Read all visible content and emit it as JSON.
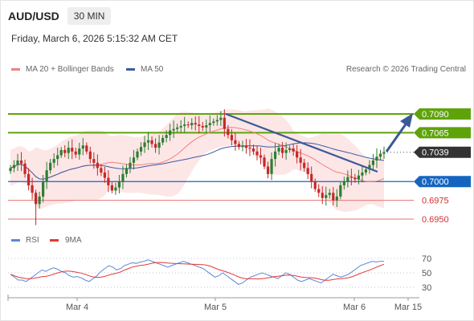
{
  "header": {
    "symbol": "AUD/USD",
    "timeframe": "30 MIN",
    "datetime": "Friday, March 6, 2026 5:15:32 AM CET"
  },
  "legend": {
    "ma20": "MA 20 + Bollinger Bands",
    "ma50": "MA 50",
    "copyright": "Research © 2026 Trading Central",
    "rsi": "RSI",
    "rsi_ma": "9MA"
  },
  "colors": {
    "up": "#2e7d32",
    "down": "#c62828",
    "ma20": "#f08080",
    "band": "#fde0e0",
    "ma50": "#3b5ba5",
    "resistance": "#5fa30a",
    "support": "#1565c0",
    "minor_support": "#e57373",
    "trend": "#3b5998",
    "rsi": "#5b8ad6",
    "rsi_ma": "#e53935"
  },
  "chart_data": {
    "type": "candlestick",
    "x_ticks": [
      "Mar 4",
      "Mar 5",
      "Mar 6",
      "Mar 15"
    ],
    "y_range": [
      0.6935,
      0.7105
    ],
    "levels": [
      {
        "value": 0.709,
        "label": "0.7090",
        "kind": "resistance"
      },
      {
        "value": 0.7065,
        "label": "0.7065",
        "kind": "resistance"
      },
      {
        "value": 0.7039,
        "label": "0.7039",
        "kind": "last"
      },
      {
        "value": 0.7,
        "label": "0.7000",
        "kind": "support"
      },
      {
        "value": 0.6975,
        "label": "0.6975",
        "kind": "minor_support"
      },
      {
        "value": 0.695,
        "label": "0.6950",
        "kind": "minor_support"
      }
    ],
    "closes": [
      0.7018,
      0.7022,
      0.7028,
      0.7024,
      0.701,
      0.6995,
      0.6985,
      0.697,
      0.698,
      0.7,
      0.7015,
      0.7025,
      0.703,
      0.7035,
      0.7042,
      0.7038,
      0.7045,
      0.704,
      0.7036,
      0.7044,
      0.7048,
      0.704,
      0.703,
      0.7025,
      0.7018,
      0.7012,
      0.7005,
      0.6995,
      0.6988,
      0.6992,
      0.7,
      0.701,
      0.7018,
      0.7025,
      0.7032,
      0.704,
      0.7046,
      0.7052,
      0.7055,
      0.705,
      0.7045,
      0.7052,
      0.7058,
      0.7062,
      0.7068,
      0.707,
      0.7072,
      0.7074,
      0.7076,
      0.7075,
      0.7078,
      0.7076,
      0.7074,
      0.7072,
      0.7075,
      0.7078,
      0.708,
      0.7082,
      0.7085,
      0.707,
      0.7062,
      0.7055,
      0.705,
      0.7046,
      0.7048,
      0.7045,
      0.7044,
      0.704,
      0.7035,
      0.7032,
      0.702,
      0.701,
      0.703,
      0.704,
      0.7045,
      0.7038,
      0.7042,
      0.7044,
      0.704,
      0.7032,
      0.7025,
      0.7018,
      0.701,
      0.7,
      0.699,
      0.6985,
      0.6978,
      0.6982,
      0.6985,
      0.6975,
      0.698,
      0.6995,
      0.7,
      0.7006,
      0.7005,
      0.7003,
      0.7008,
      0.7012,
      0.7016,
      0.7022,
      0.7028,
      0.7033,
      0.7037,
      0.7039
    ],
    "rsi": [
      48,
      44,
      40,
      40,
      38,
      42,
      46,
      50,
      54,
      52,
      55,
      57,
      55,
      52,
      50,
      46,
      44,
      45,
      43,
      40,
      38,
      42,
      46,
      52,
      56,
      60,
      58,
      54,
      56,
      60,
      62,
      64,
      63,
      65,
      66,
      68,
      66,
      64,
      62,
      60,
      58,
      60,
      62,
      64,
      66,
      64,
      62,
      60,
      58,
      56,
      52,
      48,
      44,
      46,
      50,
      46,
      42,
      38,
      34,
      36,
      40,
      44,
      46,
      48,
      50,
      48,
      46,
      44,
      42,
      46,
      50,
      48,
      44,
      40,
      38,
      40,
      42,
      40,
      38,
      36,
      40,
      44,
      48,
      46,
      44,
      46,
      48,
      52,
      56,
      60,
      62,
      64,
      66,
      65,
      66,
      66
    ],
    "rsi_ticks": [
      70,
      50,
      30
    ]
  }
}
